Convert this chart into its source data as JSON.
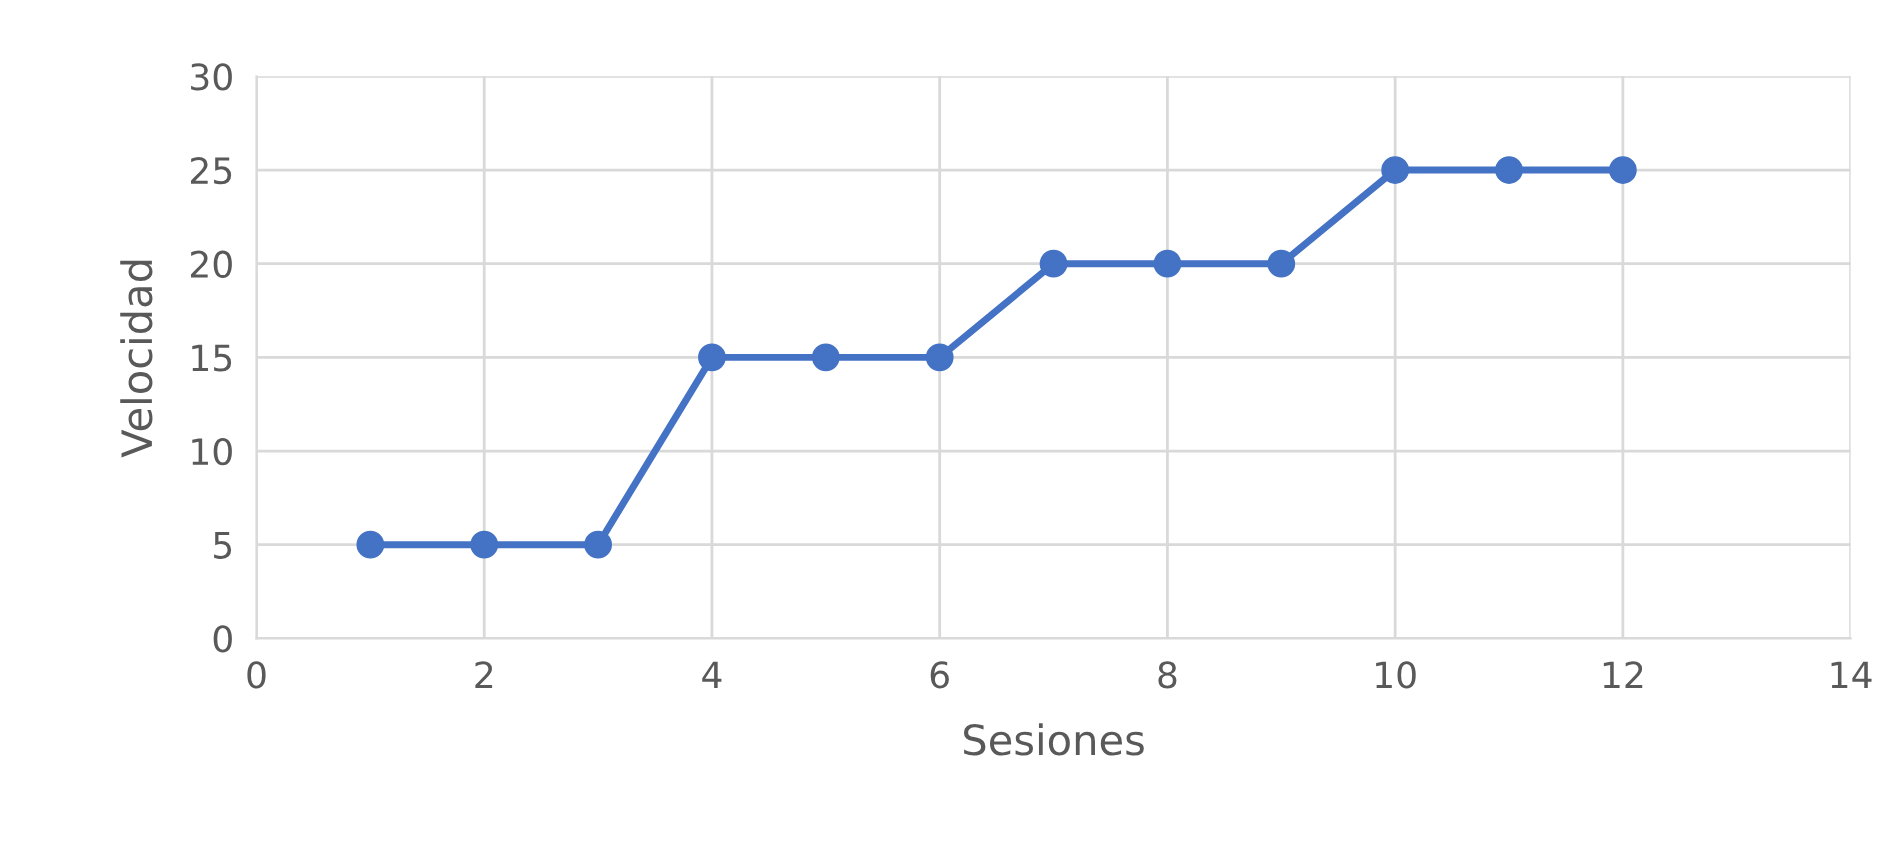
{
  "chart_data": {
    "type": "line",
    "xlabel": "Sesiones",
    "ylabel": "Velocidad",
    "x": [
      1,
      2,
      3,
      4,
      5,
      6,
      7,
      8,
      9,
      10,
      11,
      12
    ],
    "series": [
      {
        "color": "#4472c4",
        "values": [
          5,
          5,
          5,
          15,
          15,
          15,
          20,
          20,
          20,
          25,
          25,
          25
        ]
      }
    ],
    "xlim": [
      0,
      14
    ],
    "xticks": [
      0,
      2,
      4,
      6,
      8,
      10,
      12,
      14
    ],
    "ylim": [
      0,
      30
    ],
    "yticks": [
      0,
      5,
      10,
      15,
      20,
      25,
      30
    ],
    "grid": true,
    "marker": "circle",
    "line_style": "solid"
  }
}
